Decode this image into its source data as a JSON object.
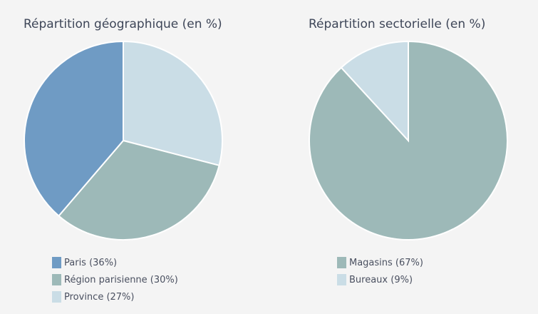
{
  "chart_data": [
    {
      "type": "pie",
      "title": "Répartition géographique (en %)",
      "slices": [
        {
          "label": "Province",
          "legend": "Province (27%)",
          "value": 27,
          "color": "#cadde6"
        },
        {
          "label": "Région parisienne",
          "legend": "Région parisienne (30%)",
          "value": 30,
          "color": "#9db9b8"
        },
        {
          "label": "Paris",
          "legend": "Paris (36%)",
          "value": 36,
          "color": "#6f9bc4"
        }
      ],
      "legend_order": [
        2,
        1,
        0
      ],
      "legend_placement": "bottom"
    },
    {
      "type": "pie",
      "title": "Répartition sectorielle (en %)",
      "slices": [
        {
          "label": "Magasins",
          "legend": "Magasins (67%)",
          "value": 67,
          "color": "#9db9b8"
        },
        {
          "label": "Bureaux",
          "legend": "Bureaux (9%)",
          "value": 9,
          "color": "#cadde6"
        }
      ],
      "legend_order": [
        0,
        1
      ],
      "legend_placement": "bottom"
    }
  ]
}
